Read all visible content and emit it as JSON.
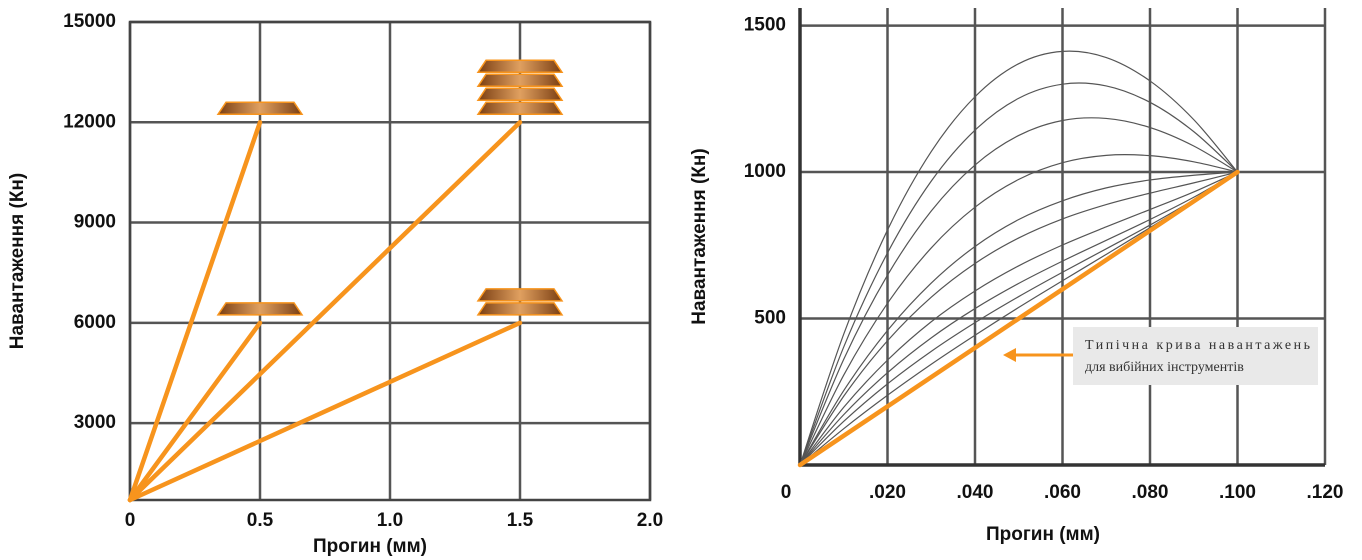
{
  "chart_data": [
    {
      "type": "line",
      "x_label": "Прогин (мм)",
      "y_label": "Навантаження (Кн)",
      "xlim": [
        0,
        2
      ],
      "ylim": [
        700,
        15000
      ],
      "xticks": [
        0,
        0.5,
        {
          "value": 1,
          "label": "1.0"
        },
        1.5,
        {
          "value": 2,
          "label": "2.0"
        }
      ],
      "yticks": [
        3000,
        6000,
        9000,
        12000,
        15000
      ],
      "grid": true,
      "series": [
        {
          "color": "#f7941d",
          "x": [
            0,
            0.5
          ],
          "values": [
            700,
            12000
          ]
        },
        {
          "color": "#f7941d",
          "x": [
            0,
            0.5
          ],
          "values": [
            700,
            6000
          ]
        },
        {
          "color": "#f7941d",
          "x": [
            0,
            1.5
          ],
          "values": [
            700,
            12000
          ]
        },
        {
          "color": "#f7941d",
          "x": [
            0,
            1.5
          ],
          "values": [
            700,
            6000
          ]
        }
      ]
    },
    {
      "type": "line",
      "x_label": "Прогин (мм)",
      "y_label": "Навантаження (Кн)",
      "xlim": [
        0,
        0.12
      ],
      "ylim": [
        0,
        1560
      ],
      "xticks": [
        0,
        {
          "value": 0.02,
          "label": ".020"
        },
        {
          "value": 0.04,
          "label": ".040"
        },
        {
          "value": 0.06,
          "label": ".060"
        },
        {
          "value": 0.08,
          "label": ".080"
        },
        {
          "value": 0.1,
          "label": ".100"
        },
        {
          "value": 0.12,
          "label": ".120"
        }
      ],
      "yticks": [
        500,
        1000,
        1500
      ],
      "grid": true,
      "x": [
        0,
        0.01,
        0.02,
        0.03,
        0.04,
        0.05,
        0.06,
        0.07,
        0.08,
        0.09,
        0.1
      ],
      "series": [
        {
          "color": "#555555",
          "values": [
            0,
            447,
            802,
            1070,
            1257,
            1370,
            1412,
            1391,
            1311,
            1179,
            1000
          ]
        },
        {
          "color": "#555555",
          "values": [
            0,
            403,
            724,
            969,
            1143,
            1252,
            1300,
            1294,
            1238,
            1138,
            1000
          ]
        },
        {
          "color": "#555555",
          "values": [
            0,
            361,
            648,
            867,
            1024,
            1125,
            1176,
            1183,
            1152,
            1089,
            1000
          ]
        },
        {
          "color": "#555555",
          "values": [
            0,
            307,
            552,
            741,
            880,
            975,
            1032,
            1057,
            1056,
            1035,
            1000
          ]
        },
        {
          "color": "#555555",
          "values": [
            0,
            254,
            459,
            621,
            746,
            838,
            902,
            946,
            973,
            989,
            1000
          ]
        },
        {
          "color": "#555555",
          "values": [
            0,
            235,
            424,
            573,
            688,
            775,
            840,
            889,
            928,
            963,
            1000
          ]
        },
        {
          "color": "#555555",
          "values": [
            0,
            197,
            358,
            489,
            594,
            680,
            751,
            813,
            872,
            932,
            1000
          ]
        },
        {
          "color": "#555555",
          "values": [
            0,
            172,
            315,
            434,
            534,
            620,
            696,
            767,
            838,
            914,
            1000
          ]
        },
        {
          "color": "#555555",
          "values": [
            0,
            149,
            277,
            388,
            486,
            575,
            658,
            738,
            819,
            905,
            1000
          ]
        },
        {
          "color": "#555555",
          "values": [
            0,
            124,
            238,
            344,
            443,
            538,
            629,
            719,
            810,
            903,
            1000
          ]
        },
        {
          "color": "#f7941d",
          "x": [
            0,
            0.1
          ],
          "values": [
            0,
            1000
          ]
        }
      ],
      "annotation": {
        "lines": [
          "Типічна крива навантажень",
          "для вибійних інструментів"
        ]
      }
    }
  ]
}
